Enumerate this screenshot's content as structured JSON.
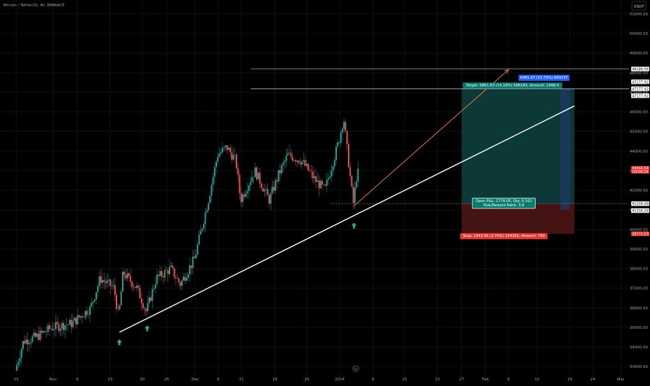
{
  "header": {
    "symbol_title": "Bitcoin / TetherUS, 4h, BINANCE"
  },
  "currency_badge": "USDT",
  "colors": {
    "background": "#000000",
    "grid": "#1b1d24",
    "axis_text": "#a0a3ab",
    "candle_up": "#26a69a",
    "candle_down": "#ef5350",
    "trendline": "#ffffff",
    "projection": "#f7873a",
    "target_zone": "#0d3b3b",
    "stop_zone": "#4a1414",
    "projection_bar": "#1e3a66",
    "arrow": "#26a69a",
    "badge_blue": "#2962ff",
    "badge_green": "#0b7a6f",
    "badge_red": "#e53935"
  },
  "chart_data": {
    "type": "candlestick",
    "symbol": "Bitcoin / TetherUS",
    "interval": "4h",
    "exchange": "BINANCE",
    "y_axis": {
      "range": [
        32400,
        51600
      ],
      "ticks": [
        "51000.00",
        "50000.00",
        "49000.00",
        "48000.00",
        "47000.00",
        "46000.00",
        "45000.00",
        "44000.00",
        "43000.00",
        "42000.00",
        "41000.00",
        "40000.00",
        "39000.00",
        "38000.00",
        "37000.00",
        "36000.00",
        "35000.00",
        "34000.00",
        "33000.00"
      ]
    },
    "x_axis": {
      "ticks": [
        "23",
        "Nov",
        "6",
        "13",
        "20",
        "25",
        "Dec",
        "6",
        "11",
        "18",
        "25",
        "2024",
        "8",
        "15",
        "22",
        "27",
        "Feb",
        "6",
        "12",
        "19",
        "24",
        "Mar"
      ]
    },
    "price_path": [
      {
        "date": "2023-10-23",
        "price": 32800
      },
      {
        "date": "2023-10-25",
        "price": 34300
      },
      {
        "date": "2023-10-28",
        "price": 34500
      },
      {
        "date": "2023-11-01",
        "price": 35000
      },
      {
        "date": "2023-11-05",
        "price": 35200
      },
      {
        "date": "2023-11-09",
        "price": 36000
      },
      {
        "date": "2023-11-11",
        "price": 37500
      },
      {
        "date": "2023-11-14",
        "price": 37000
      },
      {
        "date": "2023-11-15",
        "price": 35500
      },
      {
        "date": "2023-11-16",
        "price": 37800
      },
      {
        "date": "2023-11-19",
        "price": 37000
      },
      {
        "date": "2023-11-21",
        "price": 35800
      },
      {
        "date": "2023-11-23",
        "price": 37500
      },
      {
        "date": "2023-11-26",
        "price": 38000
      },
      {
        "date": "2023-11-28",
        "price": 37200
      },
      {
        "date": "2023-12-01",
        "price": 38500
      },
      {
        "date": "2023-12-04",
        "price": 41500
      },
      {
        "date": "2023-12-06",
        "price": 43800
      },
      {
        "date": "2023-12-08",
        "price": 44200
      },
      {
        "date": "2023-12-10",
        "price": 43500
      },
      {
        "date": "2023-12-11",
        "price": 41500
      },
      {
        "date": "2023-12-14",
        "price": 43000
      },
      {
        "date": "2023-12-17",
        "price": 41500
      },
      {
        "date": "2023-12-19",
        "price": 42800
      },
      {
        "date": "2023-12-21",
        "price": 43800
      },
      {
        "date": "2023-12-24",
        "price": 43500
      },
      {
        "date": "2023-12-27",
        "price": 42500
      },
      {
        "date": "2023-12-29",
        "price": 42000
      },
      {
        "date": "2024-01-01",
        "price": 44500
      },
      {
        "date": "2024-01-02",
        "price": 45700
      },
      {
        "date": "2024-01-03",
        "price": 43500
      },
      {
        "date": "2024-01-04",
        "price": 41300
      },
      {
        "date": "2024-01-05",
        "price": 43300
      }
    ],
    "series_last": {
      "bars": 220,
      "last_close": 43100
    },
    "trendline": {
      "points": [
        {
          "date": "2023-11-15",
          "price": 34750
        },
        {
          "date": "2024-02-20",
          "price": 46300
        }
      ],
      "touches": [
        "2023-11-15",
        "2023-11-21",
        "2024-01-04"
      ]
    },
    "projection_line": {
      "from_price": 41200,
      "to_price": 48150
    },
    "levels": [
      {
        "name": "resistance_upper",
        "price": 48188.58
      },
      {
        "name": "resistance_lower",
        "price": 47177.92
      },
      {
        "name": "entry",
        "price": 41316.09
      }
    ],
    "position": {
      "type": "long",
      "entry": 41316.09,
      "target": 47177.92,
      "stop": 39772.53,
      "target_label": "Target: 5861.83 (14.19%) 586183, Amount: 1948.4",
      "open_label_line1": "Open P&L: 1774.05, Qty: 0.162",
      "open_label_line2": "Risk/Reward Ratio: 3.8",
      "stop_label": "Stop: 1543.56 (3.74%) 154356, Amount: 750"
    },
    "projection_badge": "6491.47 (15.79%) 649147"
  },
  "price_scale": {
    "tags": [
      {
        "name": "price-tag-48188",
        "label": "48188.58",
        "price": 48188.58,
        "style": "white"
      },
      {
        "name": "price-tag-47177-a",
        "label": "47177.92",
        "price": 47177.92,
        "style": "white",
        "offset": -10
      },
      {
        "name": "price-tag-47177-b",
        "label": "47177.92",
        "price": 47177.92,
        "style": "white"
      },
      {
        "name": "price-tag-47177-c",
        "label": "47177.92",
        "price": 47177.92,
        "style": "white",
        "offset": 10
      },
      {
        "name": "price-tag-current",
        "label": "43040.54",
        "label2": "03:00:19",
        "price": 43040.54,
        "style": "red"
      },
      {
        "name": "price-tag-41316-a",
        "label": "41316.09",
        "price": 41316.09,
        "style": "white"
      },
      {
        "name": "price-tag-41316-b",
        "label": "41316.29",
        "price": 41316.29,
        "style": "white",
        "offset": 10
      },
      {
        "name": "price-tag-stop",
        "label": "39772.53",
        "price": 39772.53,
        "style": "red"
      }
    ]
  },
  "time_axis_badge": "⊘"
}
